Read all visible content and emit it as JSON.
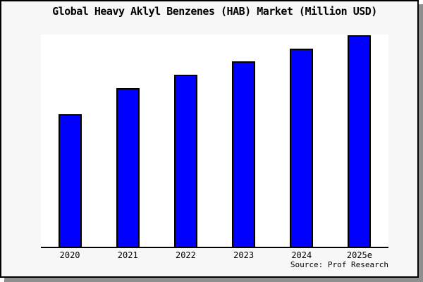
{
  "chart_data": {
    "type": "bar",
    "title": "Global Heavy Aklyl Benzenes (HAB) Market (Million USD)",
    "categories": [
      "2020",
      "2021",
      "2022",
      "2023",
      "2024",
      "2025e"
    ],
    "values": [
      62.7,
      75.0,
      81.3,
      87.7,
      93.7,
      100.0
    ],
    "units": "percent of tallest bar (y-axis is unlabeled in the figure)",
    "xlabel": "",
    "ylabel": "",
    "ylim": [
      0,
      100
    ],
    "grid": false,
    "legend": "none",
    "source": "Source: Prof Research"
  },
  "colors": {
    "bar_fill": "#0000ff",
    "bar_border": "#000000",
    "plot_bg": "#ffffff",
    "page_bg": "#f7f7f7",
    "frame_border": "#000000",
    "drop_shadow": "#8f8f8f",
    "axis_line": "#000000",
    "text": "#000000"
  }
}
